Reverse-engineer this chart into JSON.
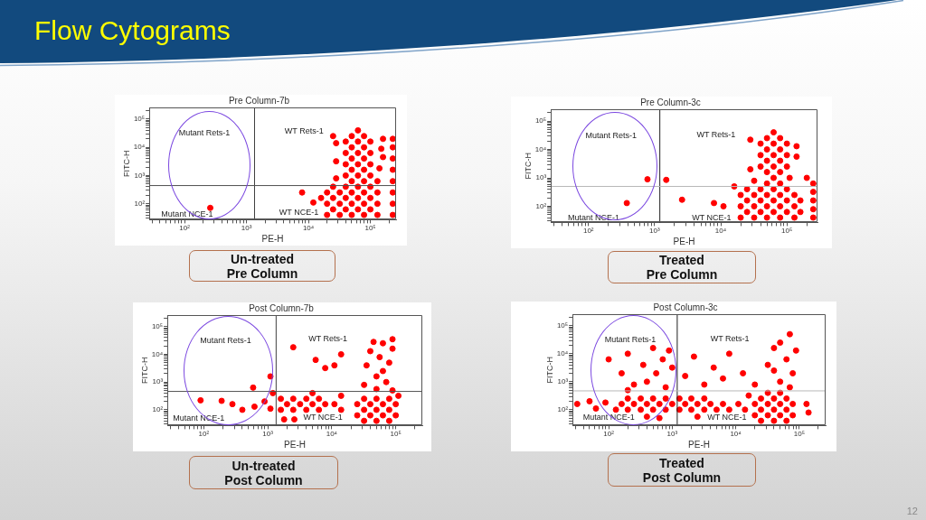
{
  "chart_data": [
    {
      "type": "other",
      "title": "Flow Cytograms",
      "annotations": [
        "12"
      ]
    },
    {
      "type": "scatter",
      "title": "Pre Column-7b",
      "xlabel": "PE-H",
      "ylabel": "FITC-H",
      "log": "xy",
      "marker": "circle",
      "xlim": [
        27,
        260000
      ],
      "ylim": [
        27,
        260000
      ],
      "xticks": [
        {
          "value": 30,
          "label": null
        },
        {
          "value": 40,
          "label": null
        },
        {
          "value": 50,
          "label": null
        },
        {
          "value": 60,
          "label": null
        },
        {
          "value": 70,
          "label": null
        },
        {
          "value": 80,
          "label": null
        },
        {
          "value": 90,
          "label": null
        },
        {
          "value": 100,
          "label": "10²"
        },
        {
          "value": 200,
          "label": null
        },
        {
          "value": 300,
          "label": null
        },
        {
          "value": 400,
          "label": null
        },
        {
          "value": 500,
          "label": null
        },
        {
          "value": 600,
          "label": null
        },
        {
          "value": 700,
          "label": null
        },
        {
          "value": 800,
          "label": null
        },
        {
          "value": 900,
          "label": null
        },
        {
          "value": 1000,
          "label": "10³"
        },
        {
          "value": 2000,
          "label": null
        },
        {
          "value": 3000,
          "label": null
        },
        {
          "value": 4000,
          "label": null
        },
        {
          "value": 5000,
          "label": null
        },
        {
          "value": 6000,
          "label": null
        },
        {
          "value": 7000,
          "label": null
        },
        {
          "value": 8000,
          "label": null
        },
        {
          "value": 9000,
          "label": null
        },
        {
          "value": 10000,
          "label": "10⁴"
        },
        {
          "value": 20000,
          "label": null
        },
        {
          "value": 30000,
          "label": null
        },
        {
          "value": 40000,
          "label": null
        },
        {
          "value": 50000,
          "label": null
        },
        {
          "value": 60000,
          "label": null
        },
        {
          "value": 70000,
          "label": null
        },
        {
          "value": 80000,
          "label": null
        },
        {
          "value": 90000,
          "label": null
        },
        {
          "value": 100000,
          "label": "10⁵"
        },
        {
          "value": 200000,
          "label": null
        }
      ],
      "yticks": [
        {
          "value": 30,
          "label": null
        },
        {
          "value": 40,
          "label": null
        },
        {
          "value": 50,
          "label": null
        },
        {
          "value": 60,
          "label": null
        },
        {
          "value": 70,
          "label": null
        },
        {
          "value": 80,
          "label": null
        },
        {
          "value": 90,
          "label": null
        },
        {
          "value": 100,
          "label": "10²"
        },
        {
          "value": 200,
          "label": null
        },
        {
          "value": 300,
          "label": null
        },
        {
          "value": 400,
          "label": null
        },
        {
          "value": 500,
          "label": null
        },
        {
          "value": 600,
          "label": null
        },
        {
          "value": 700,
          "label": null
        },
        {
          "value": 800,
          "label": null
        },
        {
          "value": 900,
          "label": null
        },
        {
          "value": 1000,
          "label": "10³"
        },
        {
          "value": 2000,
          "label": null
        },
        {
          "value": 3000,
          "label": null
        },
        {
          "value": 4000,
          "label": null
        },
        {
          "value": 5000,
          "label": null
        },
        {
          "value": 6000,
          "label": null
        },
        {
          "value": 7000,
          "label": null
        },
        {
          "value": 8000,
          "label": null
        },
        {
          "value": 9000,
          "label": null
        },
        {
          "value": 10000,
          "label": "10⁴"
        },
        {
          "value": 20000,
          "label": null
        },
        {
          "value": 30000,
          "label": null
        },
        {
          "value": 40000,
          "label": null
        },
        {
          "value": 50000,
          "label": null
        },
        {
          "value": 60000,
          "label": null
        },
        {
          "value": 70000,
          "label": null
        },
        {
          "value": 80000,
          "label": null
        },
        {
          "value": 90000,
          "label": null
        },
        {
          "value": 100000,
          "label": "10⁵"
        },
        {
          "value": 200000,
          "label": null
        }
      ],
      "series": [
        {
          "color": "#ff0000",
          "x": [
            20000,
            32000,
            50000,
            79000,
            130000,
            25000,
            40000,
            63000,
            100000,
            20000,
            32000,
            50000,
            79000,
            130000,
            25000,
            40000,
            63000,
            100000,
            20000,
            32000,
            50000,
            79000,
            130000,
            25000,
            40000,
            63000,
            100000,
            50000,
            79000,
            40000,
            63000,
            100000,
            50000,
            79000,
            40000,
            63000,
            100000,
            50000,
            79000,
            40000,
            63000,
            100000,
            50000,
            79000,
            40000,
            63000,
            100000,
            50000,
            79000,
            63000,
            28000,
            28000,
            28000,
            140000,
            150000,
            160000,
            130000,
            25000,
            16000,
            12000,
            7900,
            160000,
            230000,
            230000,
            230000,
            230000,
            230000,
            230000,
            230000,
            230000,
            260
          ],
          "values": [
            40,
            40,
            40,
            40,
            40,
            63,
            63,
            63,
            63,
            100,
            100,
            100,
            100,
            100,
            160,
            160,
            160,
            160,
            250,
            250,
            250,
            250,
            250,
            400,
            400,
            400,
            400,
            630,
            630,
            1000,
            1000,
            1000,
            1600,
            1600,
            2500,
            2500,
            2500,
            4000,
            4000,
            6300,
            6300,
            6300,
            10000,
            10000,
            16000,
            16000,
            16000,
            25000,
            25000,
            40000,
            790,
            3200,
            14000,
            1800,
            8900,
            4500,
            630,
            25000,
            160,
            110,
            250,
            20000,
            40,
            100,
            250,
            630,
            1600,
            4000,
            10000,
            20000,
            71
          ]
        }
      ],
      "ref_lines": [
        {
          "axis": "x",
          "value": 1350,
          "color": "#404040"
        },
        {
          "axis": "y",
          "value": 440,
          "color": "#505050"
        }
      ],
      "annotations": [
        "Mutant Rets-1",
        "WT Rets-1",
        "Mutant NCE-1",
        "WT NCE-1",
        "Un-treated\nPre Column"
      ]
    },
    {
      "type": "scatter",
      "title": "Pre Column-3c",
      "xlabel": "PE-H",
      "ylabel": "FITC-H",
      "log": "xy",
      "marker": "circle",
      "xlim": [
        27,
        290000
      ],
      "ylim": [
        27,
        260000
      ],
      "xticks": [
        {
          "value": 30,
          "label": null
        },
        {
          "value": 40,
          "label": null
        },
        {
          "value": 50,
          "label": null
        },
        {
          "value": 60,
          "label": null
        },
        {
          "value": 70,
          "label": null
        },
        {
          "value": 80,
          "label": null
        },
        {
          "value": 90,
          "label": null
        },
        {
          "value": 100,
          "label": "10²"
        },
        {
          "value": 200,
          "label": null
        },
        {
          "value": 300,
          "label": null
        },
        {
          "value": 400,
          "label": null
        },
        {
          "value": 500,
          "label": null
        },
        {
          "value": 600,
          "label": null
        },
        {
          "value": 700,
          "label": null
        },
        {
          "value": 800,
          "label": null
        },
        {
          "value": 900,
          "label": null
        },
        {
          "value": 1000,
          "label": "10³"
        },
        {
          "value": 2000,
          "label": null
        },
        {
          "value": 3000,
          "label": null
        },
        {
          "value": 4000,
          "label": null
        },
        {
          "value": 5000,
          "label": null
        },
        {
          "value": 6000,
          "label": null
        },
        {
          "value": 7000,
          "label": null
        },
        {
          "value": 8000,
          "label": null
        },
        {
          "value": 9000,
          "label": null
        },
        {
          "value": 10000,
          "label": "10⁴"
        },
        {
          "value": 20000,
          "label": null
        },
        {
          "value": 30000,
          "label": null
        },
        {
          "value": 40000,
          "label": null
        },
        {
          "value": 50000,
          "label": null
        },
        {
          "value": 60000,
          "label": null
        },
        {
          "value": 70000,
          "label": null
        },
        {
          "value": 80000,
          "label": null
        },
        {
          "value": 90000,
          "label": null
        },
        {
          "value": 100000,
          "label": "10⁵"
        },
        {
          "value": 200000,
          "label": null
        }
      ],
      "yticks": [
        {
          "value": 30,
          "label": null
        },
        {
          "value": 40,
          "label": null
        },
        {
          "value": 50,
          "label": null
        },
        {
          "value": 60,
          "label": null
        },
        {
          "value": 70,
          "label": null
        },
        {
          "value": 80,
          "label": null
        },
        {
          "value": 90,
          "label": null
        },
        {
          "value": 100,
          "label": "10²"
        },
        {
          "value": 200,
          "label": null
        },
        {
          "value": 300,
          "label": null
        },
        {
          "value": 400,
          "label": null
        },
        {
          "value": 500,
          "label": null
        },
        {
          "value": 600,
          "label": null
        },
        {
          "value": 700,
          "label": null
        },
        {
          "value": 800,
          "label": null
        },
        {
          "value": 900,
          "label": null
        },
        {
          "value": 1000,
          "label": "10³"
        },
        {
          "value": 2000,
          "label": null
        },
        {
          "value": 3000,
          "label": null
        },
        {
          "value": 4000,
          "label": null
        },
        {
          "value": 5000,
          "label": null
        },
        {
          "value": 6000,
          "label": null
        },
        {
          "value": 7000,
          "label": null
        },
        {
          "value": 8000,
          "label": null
        },
        {
          "value": 9000,
          "label": null
        },
        {
          "value": 10000,
          "label": "10⁴"
        },
        {
          "value": 20000,
          "label": null
        },
        {
          "value": 30000,
          "label": null
        },
        {
          "value": 40000,
          "label": null
        },
        {
          "value": 50000,
          "label": null
        },
        {
          "value": 60000,
          "label": null
        },
        {
          "value": 70000,
          "label": null
        },
        {
          "value": 80000,
          "label": null
        },
        {
          "value": 90000,
          "label": null
        },
        {
          "value": 100000,
          "label": "10⁵"
        },
        {
          "value": 200000,
          "label": null
        }
      ],
      "series": [
        {
          "color": "#ff0000",
          "x": [
            20000,
            32000,
            50000,
            79000,
            130000,
            25000,
            40000,
            63000,
            100000,
            160000,
            20000,
            32000,
            50000,
            79000,
            130000,
            25000,
            40000,
            63000,
            100000,
            160000,
            20000,
            32000,
            50000,
            79000,
            130000,
            25000,
            40000,
            63000,
            100000,
            50000,
            79000,
            63000,
            50000,
            79000,
            40000,
            63000,
            100000,
            50000,
            79000,
            40000,
            63000,
            100000,
            50000,
            79000,
            40000,
            63000,
            100000,
            50000,
            79000,
            63000,
            32000,
            110000,
            28000,
            140000,
            28000,
            140000,
            16000,
            11000,
            200000,
            250000,
            250000,
            250000,
            250000,
            250000,
            380,
            780,
            2600,
            7900,
            1500
          ],
          "values": [
            40,
            40,
            40,
            40,
            40,
            63,
            63,
            63,
            63,
            63,
            100,
            100,
            100,
            100,
            100,
            160,
            160,
            160,
            160,
            160,
            250,
            250,
            250,
            250,
            250,
            400,
            400,
            400,
            400,
            630,
            630,
            1000,
            1600,
            1600,
            2500,
            2500,
            2500,
            4000,
            4000,
            6300,
            6300,
            6300,
            10000,
            10000,
            16000,
            16000,
            16000,
            25000,
            25000,
            40000,
            790,
            1000,
            2000,
            5600,
            22000,
            13000,
            500,
            100,
            1000,
            40,
            79,
            160,
            320,
            630,
            130,
            890,
            170,
            130,
            850
          ]
        }
      ],
      "ref_lines": [
        {
          "axis": "x",
          "value": 1200,
          "color": "#202020"
        },
        {
          "axis": "y",
          "value": 500,
          "color": "#b8b8b8"
        }
      ],
      "annotations": [
        "Mutant Rets-1",
        "WT Rets-1",
        "Mutant NCE-1",
        "WT NCE-1",
        "Treated\nPre Column"
      ]
    },
    {
      "type": "scatter",
      "title": "Post Column-7b",
      "xlabel": "PE-H",
      "ylabel": "FITC-H",
      "log": "xy",
      "marker": "circle",
      "xlim": [
        27,
        260000
      ],
      "ylim": [
        27,
        260000
      ],
      "xticks": [
        {
          "value": 30,
          "label": null
        },
        {
          "value": 40,
          "label": null
        },
        {
          "value": 50,
          "label": null
        },
        {
          "value": 60,
          "label": null
        },
        {
          "value": 70,
          "label": null
        },
        {
          "value": 80,
          "label": null
        },
        {
          "value": 90,
          "label": null
        },
        {
          "value": 100,
          "label": "10²"
        },
        {
          "value": 200,
          "label": null
        },
        {
          "value": 300,
          "label": null
        },
        {
          "value": 400,
          "label": null
        },
        {
          "value": 500,
          "label": null
        },
        {
          "value": 600,
          "label": null
        },
        {
          "value": 700,
          "label": null
        },
        {
          "value": 800,
          "label": null
        },
        {
          "value": 900,
          "label": null
        },
        {
          "value": 1000,
          "label": "10³"
        },
        {
          "value": 2000,
          "label": null
        },
        {
          "value": 3000,
          "label": null
        },
        {
          "value": 4000,
          "label": null
        },
        {
          "value": 5000,
          "label": null
        },
        {
          "value": 6000,
          "label": null
        },
        {
          "value": 7000,
          "label": null
        },
        {
          "value": 8000,
          "label": null
        },
        {
          "value": 9000,
          "label": null
        },
        {
          "value": 10000,
          "label": "10⁴"
        },
        {
          "value": 20000,
          "label": null
        },
        {
          "value": 30000,
          "label": null
        },
        {
          "value": 40000,
          "label": null
        },
        {
          "value": 50000,
          "label": null
        },
        {
          "value": 60000,
          "label": null
        },
        {
          "value": 70000,
          "label": null
        },
        {
          "value": 80000,
          "label": null
        },
        {
          "value": 90000,
          "label": null
        },
        {
          "value": 100000,
          "label": "10⁵"
        },
        {
          "value": 200000,
          "label": null
        }
      ],
      "yticks": [
        {
          "value": 30,
          "label": null
        },
        {
          "value": 40,
          "label": null
        },
        {
          "value": 50,
          "label": null
        },
        {
          "value": 60,
          "label": null
        },
        {
          "value": 70,
          "label": null
        },
        {
          "value": 80,
          "label": null
        },
        {
          "value": 90,
          "label": null
        },
        {
          "value": 100,
          "label": "10²"
        },
        {
          "value": 200,
          "label": null
        },
        {
          "value": 300,
          "label": null
        },
        {
          "value": 400,
          "label": null
        },
        {
          "value": 500,
          "label": null
        },
        {
          "value": 600,
          "label": null
        },
        {
          "value": 700,
          "label": null
        },
        {
          "value": 800,
          "label": null
        },
        {
          "value": 900,
          "label": null
        },
        {
          "value": 1000,
          "label": "10³"
        },
        {
          "value": 2000,
          "label": null
        },
        {
          "value": 3000,
          "label": null
        },
        {
          "value": 4000,
          "label": null
        },
        {
          "value": 5000,
          "label": null
        },
        {
          "value": 6000,
          "label": null
        },
        {
          "value": 7000,
          "label": null
        },
        {
          "value": 8000,
          "label": null
        },
        {
          "value": 9000,
          "label": null
        },
        {
          "value": 10000,
          "label": "10⁴"
        },
        {
          "value": 20000,
          "label": null
        },
        {
          "value": 30000,
          "label": null
        },
        {
          "value": 40000,
          "label": null
        },
        {
          "value": 50000,
          "label": null
        },
        {
          "value": 60000,
          "label": null
        },
        {
          "value": 70000,
          "label": null
        },
        {
          "value": 80000,
          "label": null
        },
        {
          "value": 90000,
          "label": null
        },
        {
          "value": 100000,
          "label": "10⁵"
        },
        {
          "value": 200000,
          "label": null
        }
      ],
      "series": [
        {
          "color": "#ff0000",
          "x": [
            1600,
            2500,
            4000,
            6300,
            2000,
            3200,
            5000,
            7900,
            1600,
            2500,
            4000,
            6300,
            1200,
            1800,
            2600,
            11000,
            14000,
            5000,
            14000,
            32000,
            50000,
            79000,
            25000,
            40000,
            63000,
            100000,
            32000,
            50000,
            79000,
            25000,
            40000,
            63000,
            100000,
            32000,
            50000,
            79000,
            110000,
            2500,
            5600,
            7900,
            11000,
            14000,
            35000,
            40000,
            50000,
            56000,
            63000,
            71000,
            79000,
            89000,
            32000,
            89000,
            45000,
            89000,
            63000,
            50000,
            89,
            190,
            280,
            620,
            1100,
            590,
            400,
            890,
            1100
          ],
          "values": [
            100,
            100,
            100,
            100,
            160,
            160,
            160,
            160,
            250,
            250,
            250,
            250,
            400,
            45,
            45,
            160,
            100,
            400,
            320,
            40,
            40,
            40,
            63,
            63,
            63,
            63,
            100,
            100,
            100,
            160,
            160,
            160,
            160,
            250,
            250,
            250,
            320,
            18000,
            6300,
            3200,
            4000,
            10000,
            4000,
            13000,
            1600,
            7900,
            25000,
            1000,
            5000,
            16000,
            790,
            500,
            28000,
            35000,
            2500,
            560,
            220,
            210,
            160,
            130,
            1600,
            630,
            100,
            200,
            110
          ]
        }
      ],
      "ref_lines": [
        {
          "axis": "x",
          "value": 1350,
          "color": "#404040"
        },
        {
          "axis": "y",
          "value": 460,
          "color": "#505050"
        }
      ],
      "annotations": [
        "Mutant Rets-1",
        "WT Rets-1",
        "Mutant NCE-1",
        "WT NCE-1",
        "Un-treated\nPost Column"
      ]
    },
    {
      "type": "scatter",
      "title": "Post Column-3c",
      "xlabel": "PE-H",
      "ylabel": "FITC-H",
      "log": "xy",
      "marker": "circle",
      "xlim": [
        27,
        260000
      ],
      "ylim": [
        27,
        260000
      ],
      "xticks": [
        {
          "value": 30,
          "label": null
        },
        {
          "value": 40,
          "label": null
        },
        {
          "value": 50,
          "label": null
        },
        {
          "value": 60,
          "label": null
        },
        {
          "value": 70,
          "label": null
        },
        {
          "value": 80,
          "label": null
        },
        {
          "value": 90,
          "label": null
        },
        {
          "value": 100,
          "label": "10²"
        },
        {
          "value": 200,
          "label": null
        },
        {
          "value": 300,
          "label": null
        },
        {
          "value": 400,
          "label": null
        },
        {
          "value": 500,
          "label": null
        },
        {
          "value": 600,
          "label": null
        },
        {
          "value": 700,
          "label": null
        },
        {
          "value": 800,
          "label": null
        },
        {
          "value": 900,
          "label": null
        },
        {
          "value": 1000,
          "label": "10³"
        },
        {
          "value": 2000,
          "label": null
        },
        {
          "value": 3000,
          "label": null
        },
        {
          "value": 4000,
          "label": null
        },
        {
          "value": 5000,
          "label": null
        },
        {
          "value": 6000,
          "label": null
        },
        {
          "value": 7000,
          "label": null
        },
        {
          "value": 8000,
          "label": null
        },
        {
          "value": 9000,
          "label": null
        },
        {
          "value": 10000,
          "label": "10⁴"
        },
        {
          "value": 20000,
          "label": null
        },
        {
          "value": 30000,
          "label": null
        },
        {
          "value": 40000,
          "label": null
        },
        {
          "value": 50000,
          "label": null
        },
        {
          "value": 60000,
          "label": null
        },
        {
          "value": 70000,
          "label": null
        },
        {
          "value": 80000,
          "label": null
        },
        {
          "value": 90000,
          "label": null
        },
        {
          "value": 100000,
          "label": "10⁵"
        },
        {
          "value": 200000,
          "label": null
        }
      ],
      "yticks": [
        {
          "value": 30,
          "label": null
        },
        {
          "value": 40,
          "label": null
        },
        {
          "value": 50,
          "label": null
        },
        {
          "value": 60,
          "label": null
        },
        {
          "value": 70,
          "label": null
        },
        {
          "value": 80,
          "label": null
        },
        {
          "value": 90,
          "label": null
        },
        {
          "value": 100,
          "label": "10²"
        },
        {
          "value": 200,
          "label": null
        },
        {
          "value": 300,
          "label": null
        },
        {
          "value": 400,
          "label": null
        },
        {
          "value": 500,
          "label": null
        },
        {
          "value": 600,
          "label": null
        },
        {
          "value": 700,
          "label": null
        },
        {
          "value": 800,
          "label": null
        },
        {
          "value": 900,
          "label": null
        },
        {
          "value": 1000,
          "label": "10³"
        },
        {
          "value": 2000,
          "label": null
        },
        {
          "value": 3000,
          "label": null
        },
        {
          "value": 4000,
          "label": null
        },
        {
          "value": 5000,
          "label": null
        },
        {
          "value": 6000,
          "label": null
        },
        {
          "value": 7000,
          "label": null
        },
        {
          "value": 8000,
          "label": null
        },
        {
          "value": 9000,
          "label": null
        },
        {
          "value": 10000,
          "label": "10⁴"
        },
        {
          "value": 20000,
          "label": null
        },
        {
          "value": 30000,
          "label": null
        },
        {
          "value": 40000,
          "label": null
        },
        {
          "value": 50000,
          "label": null
        },
        {
          "value": 60000,
          "label": null
        },
        {
          "value": 70000,
          "label": null
        },
        {
          "value": 80000,
          "label": null
        },
        {
          "value": 90000,
          "label": null
        },
        {
          "value": 100000,
          "label": "10⁵"
        },
        {
          "value": 200000,
          "label": null
        }
      ],
      "series": [
        {
          "color": "#ff0000",
          "x": [
            130,
            200,
            320,
            500,
            790,
            1300,
            2000,
            3200,
            5000,
            7900,
            160,
            250,
            400,
            630,
            1000,
            1600,
            2500,
            4000,
            6300,
            200,
            320,
            500,
            790,
            1300,
            2000,
            3200,
            25000,
            40000,
            63000,
            20000,
            32000,
            50000,
            79000,
            25000,
            40000,
            63000,
            20000,
            32000,
            50000,
            79000,
            25000,
            40000,
            63000,
            32000,
            50000,
            11000,
            14000,
            16000,
            32,
            50,
            63,
            89,
            400,
            630,
            2500,
            100,
            160,
            200,
            250,
            350,
            400,
            500,
            560,
            710,
            790,
            1000,
            200,
            890,
            1600,
            2200,
            3200,
            4500,
            6300,
            7900,
            13000,
            20000,
            32000,
            40000,
            50000,
            63000,
            71000,
            79000,
            89000,
            50000,
            71000,
            40000,
            130000,
            140000
          ],
          "values": [
            100,
            100,
            100,
            100,
            100,
            100,
            100,
            100,
            100,
            100,
            160,
            160,
            160,
            160,
            160,
            160,
            160,
            160,
            160,
            250,
            250,
            250,
            250,
            250,
            250,
            250,
            40,
            40,
            40,
            63,
            63,
            63,
            63,
            100,
            100,
            100,
            160,
            160,
            160,
            160,
            250,
            250,
            250,
            400,
            400,
            160,
            100,
            320,
            160,
            200,
            110,
            180,
            56,
            50,
            56,
            6300,
            2000,
            10000,
            790,
            4000,
            1000,
            16000,
            2000,
            6300,
            630,
            3200,
            500,
            13000,
            1600,
            7900,
            790,
            3200,
            1300,
            10000,
            2000,
            790,
            4000,
            16000,
            1000,
            6300,
            50000,
            2000,
            13000,
            25000,
            630,
            2500,
            160,
            79
          ]
        }
      ],
      "ref_lines": [
        {
          "axis": "x",
          "value": 1200,
          "color": "#202020"
        },
        {
          "axis": "y",
          "value": 470,
          "color": "#b8b8b8"
        }
      ],
      "annotations": [
        "Mutant Rets-1",
        "WT Rets-1",
        "Mutant NCE-1",
        "WT NCE-1",
        "Treated\nPost Column"
      ]
    }
  ]
}
